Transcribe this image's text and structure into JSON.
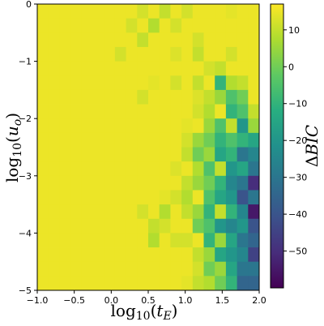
{
  "chart_data": {
    "type": "heatmap",
    "title": "",
    "xlabel": "log10(tE)",
    "ylabel": "log10(uo)",
    "colorbar_label": "ΔBIC",
    "colormap": "viridis",
    "xlim": [
      -1.0,
      2.0
    ],
    "ylim": [
      -5,
      0
    ],
    "clim": [
      -60,
      17
    ],
    "xticks": [
      "−1.0",
      "−0.5",
      "0.0",
      "0.5",
      "1.0",
      "1.5",
      "2.0"
    ],
    "yticks": [
      "0",
      "−1",
      "−2",
      "−3",
      "−4",
      "−5"
    ],
    "colorbar_ticks": [
      "10",
      "0",
      "−10",
      "−20",
      "−30",
      "−40",
      "−50"
    ],
    "colorbar_tick_values": [
      10,
      0,
      -10,
      -20,
      -30,
      -40,
      -50
    ],
    "n_cols": 20,
    "n_rows": 20,
    "cell_values_note_omitted": false,
    "values": [
      [
        15,
        15,
        15,
        15,
        15,
        15,
        15,
        15,
        15,
        12,
        15,
        10,
        15,
        12,
        15,
        15,
        15,
        14,
        15,
        15
      ],
      [
        15,
        15,
        15,
        15,
        15,
        15,
        15,
        15,
        12,
        15,
        8,
        15,
        12,
        15,
        15,
        15,
        15,
        15,
        15,
        15
      ],
      [
        15,
        15,
        15,
        15,
        15,
        15,
        15,
        15,
        15,
        10,
        15,
        15,
        15,
        15,
        12,
        15,
        15,
        15,
        15,
        15
      ],
      [
        15,
        15,
        15,
        15,
        15,
        15,
        15,
        12,
        15,
        15,
        15,
        15,
        13,
        15,
        10,
        15,
        15,
        12,
        15,
        15
      ],
      [
        15,
        15,
        15,
        15,
        15,
        15,
        15,
        15,
        15,
        15,
        15,
        15,
        15,
        15,
        15,
        12,
        10,
        15,
        15,
        15
      ],
      [
        15,
        15,
        15,
        15,
        15,
        15,
        15,
        15,
        15,
        15,
        14,
        15,
        12,
        15,
        10,
        15,
        -10,
        8,
        10,
        15
      ],
      [
        15,
        15,
        15,
        15,
        15,
        15,
        15,
        15,
        15,
        12,
        15,
        15,
        15,
        15,
        13,
        10,
        5,
        -5,
        0,
        15
      ],
      [
        15,
        15,
        15,
        15,
        15,
        15,
        15,
        15,
        15,
        15,
        15,
        15,
        15,
        15,
        12,
        8,
        15,
        -10,
        -5,
        10
      ],
      [
        15,
        15,
        15,
        15,
        15,
        15,
        15,
        15,
        15,
        15,
        15,
        15,
        15,
        14,
        15,
        5,
        -5,
        10,
        -20,
        5
      ],
      [
        15,
        15,
        15,
        15,
        15,
        15,
        15,
        15,
        15,
        15,
        15,
        15,
        15,
        12,
        5,
        0,
        -10,
        -5,
        -10,
        -15
      ],
      [
        15,
        15,
        15,
        15,
        15,
        15,
        15,
        15,
        15,
        15,
        15,
        15,
        15,
        10,
        0,
        5,
        -15,
        -10,
        -30,
        -25
      ],
      [
        15,
        15,
        15,
        15,
        15,
        15,
        15,
        15,
        15,
        15,
        15,
        15,
        13,
        15,
        8,
        -5,
        10,
        -20,
        -15,
        -30
      ],
      [
        15,
        15,
        15,
        15,
        15,
        15,
        15,
        15,
        15,
        15,
        15,
        15,
        15,
        10,
        5,
        0,
        -10,
        -25,
        -30,
        -50
      ],
      [
        15,
        15,
        15,
        15,
        15,
        15,
        15,
        15,
        15,
        15,
        15,
        14,
        12,
        8,
        15,
        -5,
        -15,
        -20,
        -40,
        -30
      ],
      [
        15,
        15,
        15,
        15,
        15,
        15,
        15,
        15,
        15,
        12,
        15,
        8,
        15,
        10,
        5,
        -10,
        10,
        -10,
        -25,
        -55
      ],
      [
        15,
        15,
        15,
        15,
        15,
        15,
        15,
        15,
        15,
        15,
        10,
        12,
        15,
        15,
        0,
        -5,
        -20,
        -25,
        -20,
        -40
      ],
      [
        15,
        15,
        15,
        15,
        15,
        15,
        15,
        15,
        15,
        15,
        8,
        15,
        12,
        12,
        15,
        -10,
        5,
        -15,
        -30,
        -35
      ],
      [
        15,
        15,
        15,
        15,
        15,
        15,
        15,
        15,
        15,
        15,
        15,
        15,
        15,
        15,
        10,
        5,
        -15,
        -20,
        -25,
        -45
      ],
      [
        15,
        15,
        15,
        15,
        15,
        15,
        15,
        15,
        15,
        15,
        15,
        15,
        15,
        15,
        12,
        0,
        5,
        -15,
        -30,
        -30
      ],
      [
        15,
        15,
        15,
        15,
        15,
        15,
        15,
        15,
        15,
        15,
        15,
        15,
        15,
        14,
        10,
        8,
        0,
        -10,
        -35,
        -35
      ]
    ]
  }
}
